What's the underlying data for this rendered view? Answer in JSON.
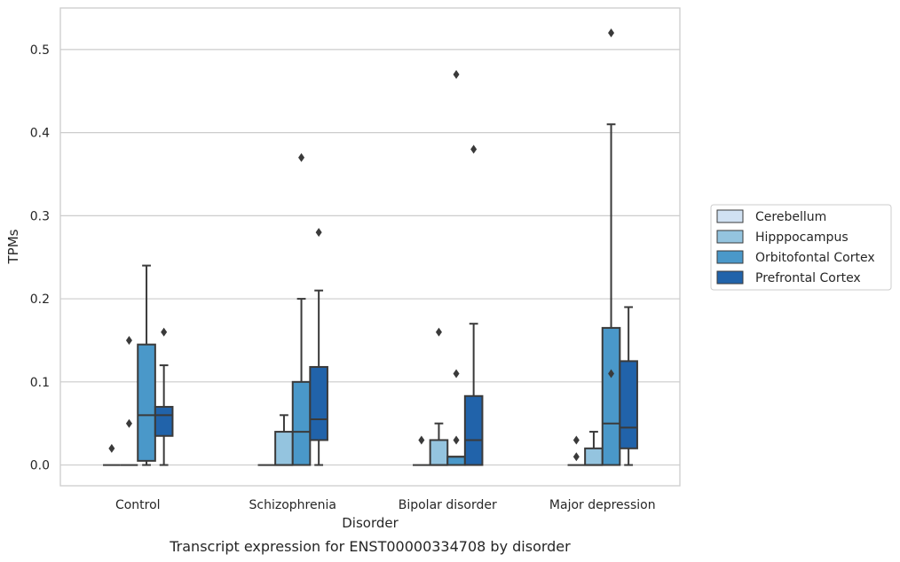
{
  "chart_data": {
    "type": "boxplot",
    "xlabel": "Disorder",
    "ylabel": "TPMs",
    "caption": "Transcript expression for ENST00000334708 by disorder",
    "ylim": [
      -0.025,
      0.55
    ],
    "yticks": [
      "0.0",
      "0.1",
      "0.2",
      "0.3",
      "0.4",
      "0.5"
    ],
    "ytick_values": [
      0.0,
      0.1,
      0.2,
      0.3,
      0.4,
      0.5
    ],
    "grid": "horizontal",
    "legend_position": "right",
    "categories": [
      "Control",
      "Schizophrenia",
      "Bipolar disorder",
      "Major depression"
    ],
    "series": [
      {
        "name": "Cerebellum",
        "color": "#d0e1f2",
        "boxes": [
          {
            "min": 0,
            "q1": 0,
            "median": 0,
            "q3": 0,
            "max": 0,
            "outliers": [
              0.02
            ]
          },
          {
            "min": 0,
            "q1": 0,
            "median": 0,
            "q3": 0,
            "max": 0,
            "outliers": []
          },
          {
            "min": 0,
            "q1": 0,
            "median": 0,
            "q3": 0,
            "max": 0,
            "outliers": [
              0.03
            ]
          },
          {
            "min": 0,
            "q1": 0,
            "median": 0,
            "q3": 0,
            "max": 0,
            "outliers": [
              0.01,
              0.03
            ]
          }
        ]
      },
      {
        "name": "Hipppocampus",
        "color": "#94c4df",
        "boxes": [
          {
            "min": 0,
            "q1": 0,
            "median": 0,
            "q3": 0,
            "max": 0,
            "outliers": [
              0.05,
              0.15
            ]
          },
          {
            "min": 0,
            "q1": 0,
            "median": 0,
            "q3": 0.04,
            "max": 0.06,
            "outliers": []
          },
          {
            "min": 0,
            "q1": 0,
            "median": 0,
            "q3": 0.03,
            "max": 0.05,
            "outliers": [
              0.16
            ]
          },
          {
            "min": 0,
            "q1": 0,
            "median": 0,
            "q3": 0.02,
            "max": 0.04,
            "outliers": []
          }
        ]
      },
      {
        "name": "Orbitofontal Cortex",
        "color": "#4a98c9",
        "boxes": [
          {
            "min": 0,
            "q1": 0.005,
            "median": 0.06,
            "q3": 0.145,
            "max": 0.24,
            "outliers": []
          },
          {
            "min": 0,
            "q1": 0,
            "median": 0.04,
            "q3": 0.1,
            "max": 0.2,
            "outliers": [
              0.37
            ]
          },
          {
            "min": 0,
            "q1": 0,
            "median": 0.01,
            "q3": 0.01,
            "max": 0.01,
            "outliers": [
              0.03,
              0.11,
              0.47
            ]
          },
          {
            "min": 0,
            "q1": 0,
            "median": 0.05,
            "q3": 0.165,
            "max": 0.41,
            "outliers": [
              0.11,
              0.52
            ]
          }
        ]
      },
      {
        "name": "Prefrontal Cortex",
        "color": "#2163aa",
        "boxes": [
          {
            "min": 0,
            "q1": 0.035,
            "median": 0.06,
            "q3": 0.07,
            "max": 0.12,
            "outliers": [
              0.16
            ]
          },
          {
            "min": 0,
            "q1": 0.03,
            "median": 0.055,
            "q3": 0.118,
            "max": 0.21,
            "outliers": [
              0.28
            ]
          },
          {
            "min": 0,
            "q1": 0,
            "median": 0.03,
            "q3": 0.083,
            "max": 0.17,
            "outliers": [
              0.38
            ]
          },
          {
            "min": 0,
            "q1": 0.02,
            "median": 0.045,
            "q3": 0.125,
            "max": 0.19,
            "outliers": []
          }
        ]
      }
    ]
  }
}
